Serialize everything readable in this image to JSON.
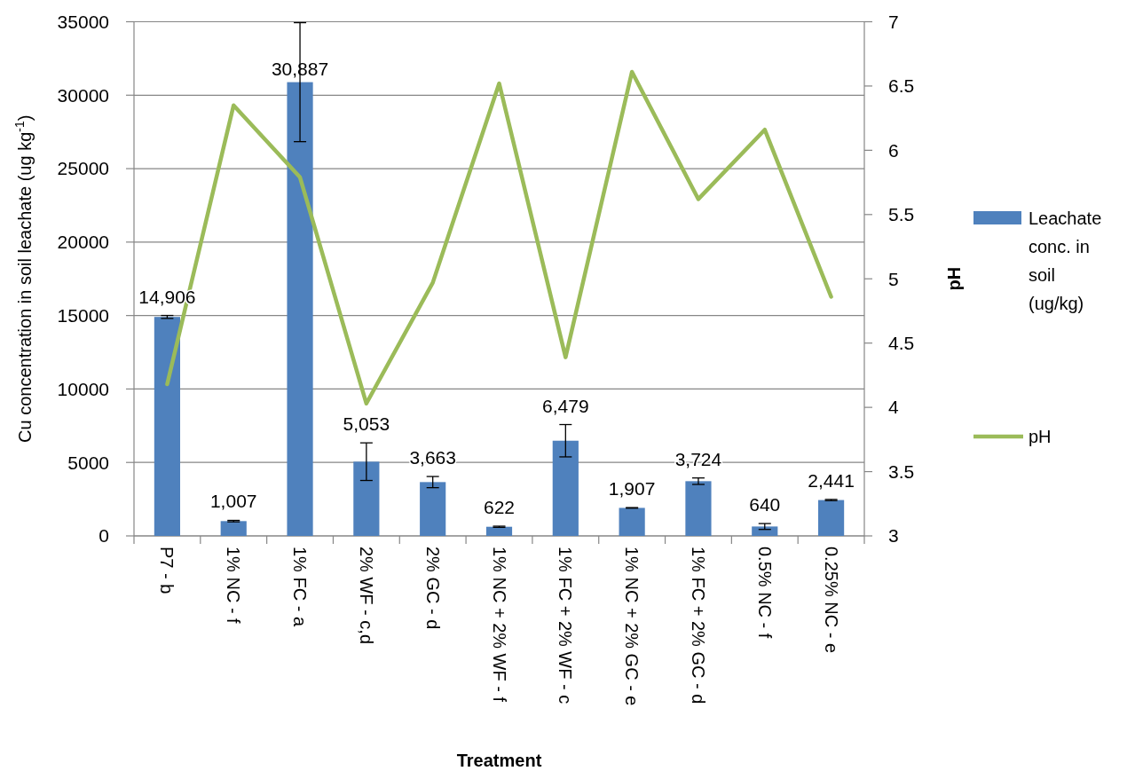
{
  "chart_data": {
    "type": "bar",
    "xlabel": "Treatment",
    "ylabel": "Cu concentration in soil leachate (ug kg$^{-1}$)",
    "y2label": "pH",
    "categories": [
      "P7 - b",
      "1% NC - f",
      "1% FC - a",
      "2% WF - c,d",
      "2% GC - d",
      "1% NC + 2% WF - f",
      "1% FC + 2% WF - c",
      "1% NC + 2% GC - e",
      "1% FC + 2% GC - d",
      "0.5% NC - f",
      "0.25% NC - e"
    ],
    "series": [
      {
        "name": "Leachate conc. in soil (ug/kg)",
        "type": "bar",
        "color": "#4f81bd",
        "values": [
          14906,
          1007,
          30887,
          5053,
          3663,
          622,
          6479,
          1907,
          3724,
          640,
          2441
        ],
        "errors": [
          100,
          50,
          4050,
          1280,
          380,
          40,
          1100,
          20,
          220,
          200,
          40
        ],
        "value_labels": [
          "14,906",
          "1,007",
          "30,887",
          "5,053",
          "3,663",
          "622",
          "6,479",
          "1,907",
          "3,724",
          "640",
          "2,441"
        ]
      },
      {
        "name": "pH",
        "type": "line",
        "axis": "y2",
        "color": "#9bbb59",
        "values": [
          4.18,
          6.35,
          5.79,
          4.03,
          4.97,
          6.52,
          4.39,
          6.61,
          5.62,
          6.16,
          4.86
        ]
      }
    ],
    "ylim": [
      0,
      35000
    ],
    "yticks": [
      0,
      5000,
      10000,
      15000,
      20000,
      25000,
      30000,
      35000
    ],
    "y2lim": [
      3,
      7
    ],
    "y2ticks": [
      3,
      3.5,
      4,
      4.5,
      5,
      5.5,
      6,
      6.5,
      7
    ],
    "grid": "y",
    "legend": "right"
  }
}
